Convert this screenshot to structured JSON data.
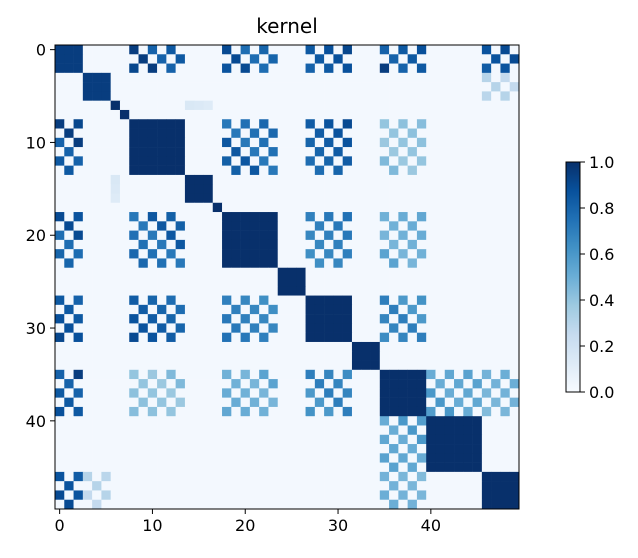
{
  "chart_data": {
    "type": "heatmap",
    "title": "kernel",
    "size": 50,
    "colormap": "Blues",
    "x_ticks": [
      0,
      10,
      20,
      30,
      40
    ],
    "y_ticks": [
      0,
      10,
      20,
      30,
      40
    ],
    "colorbar": {
      "range": [
        0.0,
        1.0
      ],
      "ticks": [
        "0.0",
        "0.2",
        "0.4",
        "0.6",
        "0.8",
        "1.0"
      ]
    },
    "blocks": [
      {
        "members": [
          0,
          1,
          2
        ],
        "within": 0.95
      },
      {
        "members": [
          3,
          4,
          5
        ],
        "within": 0.95
      },
      {
        "members": [
          6
        ],
        "within": 1.0
      },
      {
        "members": [
          7
        ],
        "within": 1.0
      },
      {
        "members": [
          8,
          9,
          10,
          11,
          12,
          13
        ],
        "within": 1.0
      },
      {
        "members": [
          14,
          15,
          16
        ],
        "within": 1.0
      },
      {
        "members": [
          17
        ],
        "within": 1.0
      },
      {
        "members": [
          18,
          19,
          20,
          21,
          22,
          23
        ],
        "within": 1.0
      },
      {
        "members": [
          24,
          25,
          26
        ],
        "within": 1.0
      },
      {
        "members": [
          27,
          28,
          29,
          30,
          31
        ],
        "within": 1.0
      },
      {
        "members": [
          32,
          33,
          34
        ],
        "within": 1.0
      },
      {
        "members": [
          35,
          36,
          37,
          38,
          39
        ],
        "within": 1.0
      },
      {
        "members": [
          40,
          41,
          42,
          43,
          44,
          45
        ],
        "within": 1.0
      },
      {
        "members": [
          46,
          47,
          48,
          49
        ],
        "within": 1.0
      }
    ],
    "links": [
      {
        "a": 0,
        "b": 2,
        "value": 0.0
      },
      {
        "a": 0,
        "b": 4,
        "value": 0.95
      },
      {
        "a": 0,
        "b": 7,
        "value": 0.9
      },
      {
        "a": 0,
        "b": 9,
        "value": 0.95
      },
      {
        "a": 0,
        "b": 11,
        "value": 0.95
      },
      {
        "a": 0,
        "b": 13,
        "value": 0.9
      },
      {
        "a": 1,
        "b": 13,
        "value": 0.3
      },
      {
        "a": 0,
        "b": 12,
        "value": 0.0
      },
      {
        "a": 1,
        "b": 3,
        "value": 0.0
      },
      {
        "a": 3,
        "b": 8,
        "value": 0.0
      },
      {
        "a": 1,
        "b": 6,
        "value": 0.0
      },
      {
        "a": 2,
        "b": 11,
        "value": 0.0
      },
      {
        "a": 4,
        "b": 9,
        "value": 0.9
      },
      {
        "a": 4,
        "b": 7,
        "value": 0.85
      },
      {
        "a": 7,
        "b": 9,
        "value": 0.75
      },
      {
        "a": 7,
        "b": 11,
        "value": 0.55
      },
      {
        "a": 9,
        "b": 11,
        "value": 0.7
      },
      {
        "a": 11,
        "b": 12,
        "value": 0.6
      },
      {
        "a": 11,
        "b": 13,
        "value": 0.5
      },
      {
        "a": 4,
        "b": 11,
        "value": 0.45
      },
      {
        "a": 2,
        "b": 5,
        "value": 0.15
      },
      {
        "a": 5,
        "b": 10,
        "value": 0.0
      },
      {
        "a": 6,
        "b": 10,
        "value": 0.0
      },
      {
        "a": 10,
        "b": 12,
        "value": 0.0
      }
    ]
  }
}
